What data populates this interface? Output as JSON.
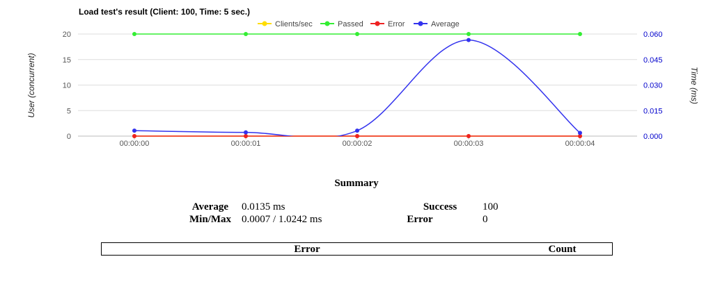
{
  "chart_data": {
    "type": "line",
    "title": "Load test's result (Client: 100, Time: 5 sec.)",
    "x": [
      "00:00:00",
      "00:00:01",
      "00:00:02",
      "00:00:03",
      "00:00:04"
    ],
    "y_left_label": "User (concurrent)",
    "y_right_label": "Time (ms)",
    "y_left_ticks": [
      "0",
      "5",
      "10",
      "15",
      "20"
    ],
    "y_right_ticks": [
      "0.000",
      "0.015",
      "0.030",
      "0.045",
      "0.060"
    ],
    "y_left_lim": [
      0,
      20
    ],
    "y_right_lim": [
      0,
      0.06
    ],
    "grid": true,
    "legend_position": "top-center",
    "series": [
      {
        "name": "Clients/sec",
        "axis": "left",
        "color": "#ffdd00",
        "values": [
          0,
          0,
          0,
          0,
          0
        ]
      },
      {
        "name": "Passed",
        "axis": "left",
        "color": "#33ee33",
        "values": [
          20,
          20,
          20,
          20,
          20
        ]
      },
      {
        "name": "Error",
        "axis": "left",
        "color": "#ee2222",
        "values": [
          0,
          0,
          0,
          0,
          0
        ]
      },
      {
        "name": "Average",
        "axis": "right",
        "color": "#3333ee",
        "values": [
          0.0032,
          0.0022,
          0.0032,
          0.0565,
          0.0019
        ]
      }
    ]
  },
  "summary": {
    "title": "Summary",
    "average_label": "Average",
    "average_value": "0.0135 ms",
    "minmax_label": "Min/Max",
    "minmax_value": "0.0007 / 1.0242 ms",
    "success_label": "Success",
    "success_value": "100",
    "error_label": "Error",
    "error_value": "0"
  },
  "error_table": {
    "col_error": "Error",
    "col_count": "Count"
  }
}
